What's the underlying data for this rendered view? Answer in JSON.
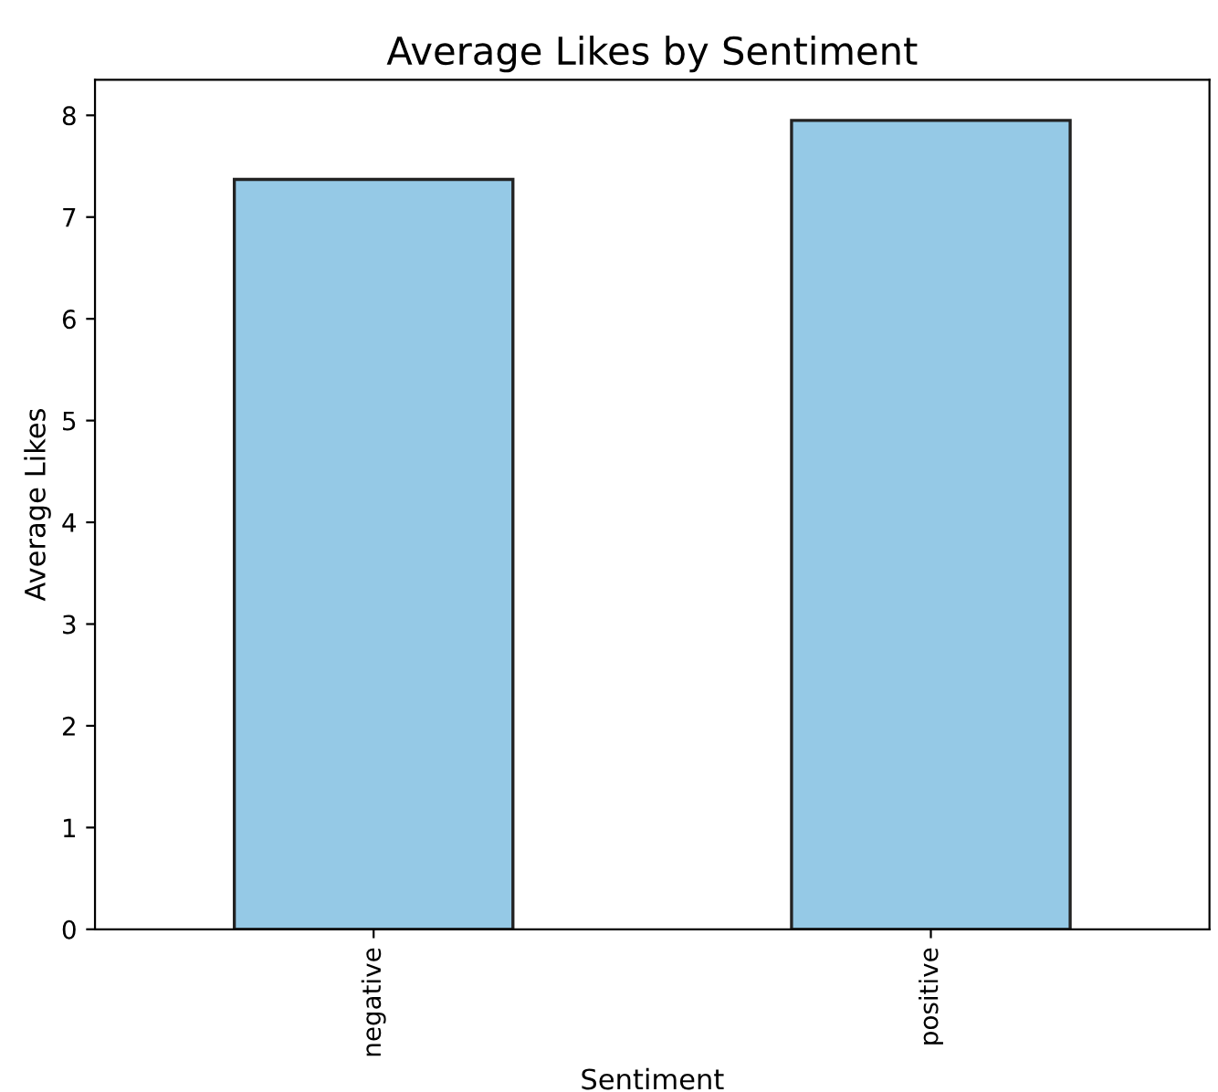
{
  "chart_data": {
    "type": "bar",
    "title": "Average Likes by Sentiment",
    "xlabel": "Sentiment",
    "ylabel": "Average Likes",
    "categories": [
      "negative",
      "positive"
    ],
    "values": [
      7.37,
      7.95
    ],
    "color": "#95c9e6",
    "ylim": [
      0,
      8.35
    ],
    "yticks": [
      0,
      1,
      2,
      3,
      4,
      5,
      6,
      7,
      8
    ],
    "grid": false,
    "legend": false
  }
}
